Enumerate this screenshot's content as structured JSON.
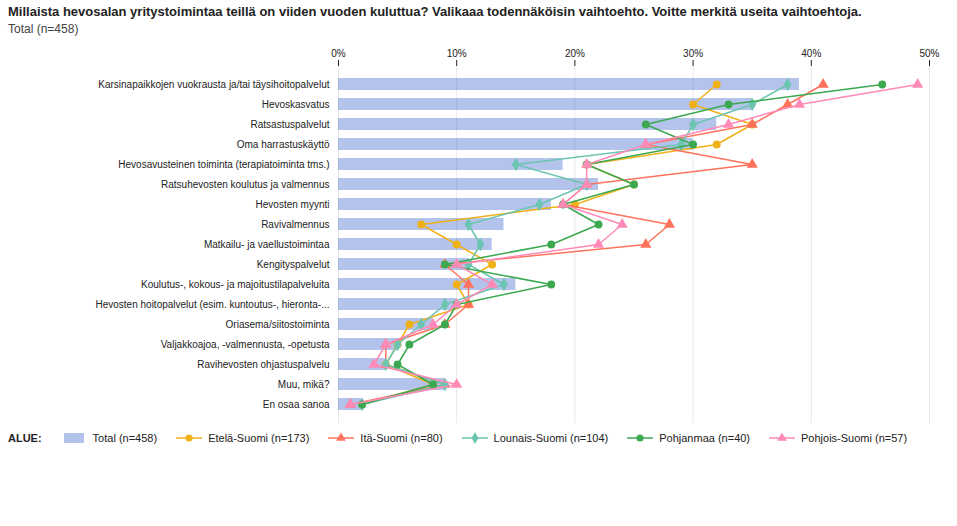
{
  "chart_data": {
    "type": "bar",
    "orientation": "horizontal",
    "title": "Millaista hevosalan yritystoimintaa teillä on viiden vuoden kuluttua? Valikaaa todennäköisin vaihtoehto. Voitte merkitä useita vaihtoehtoja.",
    "subtitle": "Total (n=458)",
    "legend_title": "ALUE:",
    "categories": [
      "Karsinapaikkojen vuokrausta ja/tai täysihoitopalvelut",
      "Hevoskasvatus",
      "Ratsastuspalvelut",
      "Oma harrastuskäyttö",
      "Hevosavusteinen toiminta (terapiatoiminta tms.)",
      "Ratsuhevosten koulutus ja valmennus",
      "Hevosten myynti",
      "Ravivalmennus",
      "Matkailu- ja vaellustoimintaa",
      "Kengityspalvelut",
      "Koulutus-, kokous- ja majoitustilapalveluita",
      "Hevosten hoitopalvelut (esim. kuntoutus-, hieronta-...",
      "Oriasema/siitostoiminta",
      "Valjakkoajoa, -valmennusta, -opetusta",
      "Ravihevosten ohjastuspalvelu",
      "Muu, mikä?",
      "En osaa sanoa"
    ],
    "series": [
      {
        "name": "Total (n=458)",
        "type": "bar",
        "values": [
          39,
          35,
          32,
          30,
          19,
          22,
          18,
          14,
          13,
          11,
          15,
          10,
          8,
          5,
          4,
          9,
          2
        ]
      },
      {
        "name": "Etelä-Suomi (n=173)",
        "type": "line",
        "marker": "circle",
        "values": [
          32,
          30,
          35,
          32,
          21,
          25,
          20,
          7,
          10,
          13,
          10,
          11,
          6,
          5,
          4,
          8,
          2
        ]
      },
      {
        "name": "Itä-Suomi (n=80)",
        "type": "line",
        "marker": "triangle",
        "values": [
          41,
          38,
          35,
          26,
          35,
          21,
          19,
          28,
          26,
          9,
          11,
          11,
          9,
          4,
          4,
          9,
          1
        ]
      },
      {
        "name": "Lounais-Suomi (n=104)",
        "type": "line",
        "marker": "diamond",
        "values": [
          38,
          35,
          30,
          29,
          15,
          21,
          17,
          11,
          12,
          11,
          14,
          9,
          7,
          5,
          4,
          9,
          2
        ]
      },
      {
        "name": "Pohjanmaa (n=40)",
        "type": "line",
        "marker": "circle",
        "values": [
          46,
          33,
          26,
          30,
          21,
          25,
          19,
          22,
          18,
          9,
          18,
          10,
          9,
          6,
          5,
          8,
          2
        ]
      },
      {
        "name": "Pohjois-Suomi (n=57)",
        "type": "line",
        "marker": "triangle",
        "values": [
          49,
          39,
          33,
          26,
          21,
          21,
          19,
          24,
          22,
          10,
          13,
          10,
          8,
          4,
          3,
          10,
          1
        ]
      }
    ],
    "xlim": [
      0,
      50
    ],
    "xticks": [
      {
        "value": 0,
        "label": "0%"
      },
      {
        "value": 10,
        "label": "10%"
      },
      {
        "value": 20,
        "label": "20%"
      },
      {
        "value": 30,
        "label": "30%"
      },
      {
        "value": 40,
        "label": "40%"
      },
      {
        "value": 50,
        "label": "50%"
      }
    ],
    "grid": true,
    "legend": "bottom"
  }
}
